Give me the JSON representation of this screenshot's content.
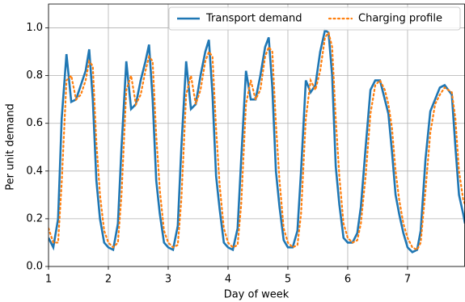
{
  "chart_data": {
    "type": "line",
    "xlabel": "Day of week",
    "ylabel": "Per unit demand",
    "x": [
      1,
      1.08,
      1.16,
      1.22,
      1.3,
      1.38,
      1.46,
      1.54,
      1.62,
      1.68,
      1.74,
      1.8,
      1.86,
      1.93,
      2,
      2.08,
      2.16,
      2.22,
      2.3,
      2.38,
      2.46,
      2.54,
      2.62,
      2.68,
      2.74,
      2.8,
      2.86,
      2.93,
      3,
      3.08,
      3.16,
      3.22,
      3.3,
      3.38,
      3.46,
      3.54,
      3.62,
      3.68,
      3.74,
      3.8,
      3.86,
      3.93,
      4,
      4.08,
      4.16,
      4.22,
      4.3,
      4.38,
      4.46,
      4.54,
      4.62,
      4.68,
      4.74,
      4.8,
      4.86,
      4.93,
      5,
      5.08,
      5.16,
      5.22,
      5.3,
      5.38,
      5.46,
      5.54,
      5.62,
      5.68,
      5.74,
      5.8,
      5.86,
      5.93,
      6,
      6.08,
      6.16,
      6.22,
      6.3,
      6.38,
      6.46,
      6.54,
      6.62,
      6.68,
      6.74,
      6.8,
      6.86,
      6.93,
      7,
      7.08,
      7.16,
      7.22,
      7.3,
      7.38,
      7.46,
      7.54,
      7.62,
      7.68,
      7.74,
      7.8,
      7.86,
      7.93,
      7.96
    ],
    "series": [
      {
        "name": "Transport demand",
        "color": "#1f77b4",
        "style": "solid",
        "values": [
          0.12,
          0.08,
          0.2,
          0.62,
          0.89,
          0.69,
          0.7,
          0.76,
          0.82,
          0.91,
          0.7,
          0.36,
          0.2,
          0.1,
          0.08,
          0.07,
          0.18,
          0.5,
          0.86,
          0.66,
          0.68,
          0.78,
          0.86,
          0.93,
          0.7,
          0.36,
          0.22,
          0.1,
          0.08,
          0.07,
          0.17,
          0.5,
          0.86,
          0.66,
          0.68,
          0.8,
          0.9,
          0.95,
          0.72,
          0.38,
          0.24,
          0.1,
          0.08,
          0.07,
          0.16,
          0.45,
          0.82,
          0.7,
          0.7,
          0.8,
          0.92,
          0.96,
          0.75,
          0.4,
          0.25,
          0.11,
          0.08,
          0.08,
          0.15,
          0.4,
          0.78,
          0.73,
          0.76,
          0.9,
          0.99,
          0.98,
          0.8,
          0.42,
          0.26,
          0.12,
          0.1,
          0.1,
          0.14,
          0.25,
          0.5,
          0.74,
          0.78,
          0.78,
          0.7,
          0.64,
          0.48,
          0.3,
          0.22,
          0.14,
          0.08,
          0.06,
          0.07,
          0.15,
          0.45,
          0.65,
          0.7,
          0.75,
          0.76,
          0.74,
          0.72,
          0.5,
          0.3,
          0.22,
          0.18
        ]
      },
      {
        "name": "Charging profile",
        "color": "#ff7f0e",
        "style": "dotted",
        "values": [
          0.16,
          0.1,
          0.1,
          0.35,
          0.78,
          0.8,
          0.7,
          0.72,
          0.78,
          0.86,
          0.84,
          0.52,
          0.3,
          0.15,
          0.1,
          0.08,
          0.1,
          0.3,
          0.74,
          0.8,
          0.68,
          0.72,
          0.82,
          0.88,
          0.86,
          0.55,
          0.32,
          0.15,
          0.1,
          0.08,
          0.09,
          0.28,
          0.72,
          0.8,
          0.68,
          0.74,
          0.86,
          0.9,
          0.88,
          0.58,
          0.34,
          0.16,
          0.1,
          0.08,
          0.09,
          0.26,
          0.68,
          0.78,
          0.7,
          0.74,
          0.88,
          0.92,
          0.9,
          0.6,
          0.36,
          0.16,
          0.1,
          0.08,
          0.09,
          0.22,
          0.62,
          0.78,
          0.74,
          0.82,
          0.96,
          0.98,
          0.92,
          0.62,
          0.38,
          0.18,
          0.12,
          0.1,
          0.11,
          0.18,
          0.38,
          0.64,
          0.76,
          0.78,
          0.74,
          0.68,
          0.58,
          0.4,
          0.28,
          0.18,
          0.12,
          0.08,
          0.07,
          0.1,
          0.32,
          0.56,
          0.68,
          0.72,
          0.75,
          0.74,
          0.73,
          0.62,
          0.4,
          0.28,
          0.26
        ]
      }
    ],
    "xlim": [
      1,
      7.96
    ],
    "ylim": [
      0,
      1.1
    ],
    "xticks": [
      1,
      2,
      3,
      4,
      5,
      6,
      7
    ],
    "yticks": [
      {
        "value": 0,
        "label": "0.0"
      },
      {
        "value": 0.2,
        "label": "0.2"
      },
      {
        "value": 0.4,
        "label": "0.4"
      },
      {
        "value": 0.6,
        "label": "0.6"
      },
      {
        "value": 0.8,
        "label": "0.8"
      },
      {
        "value": 1,
        "label": "1.0"
      }
    ],
    "grid": true,
    "legend": "upper right"
  }
}
